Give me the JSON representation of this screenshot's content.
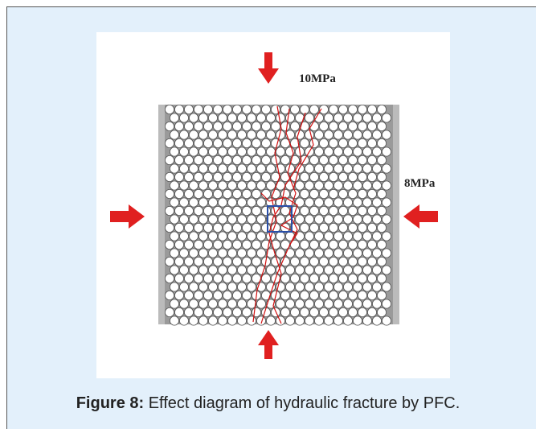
{
  "figure": {
    "labels": {
      "top_pressure": "10MPa",
      "side_pressure": "8MPa"
    },
    "caption": {
      "label": "Figure 8:",
      "text": "Effect diagram of hydraulic fracture by PFC."
    }
  }
}
